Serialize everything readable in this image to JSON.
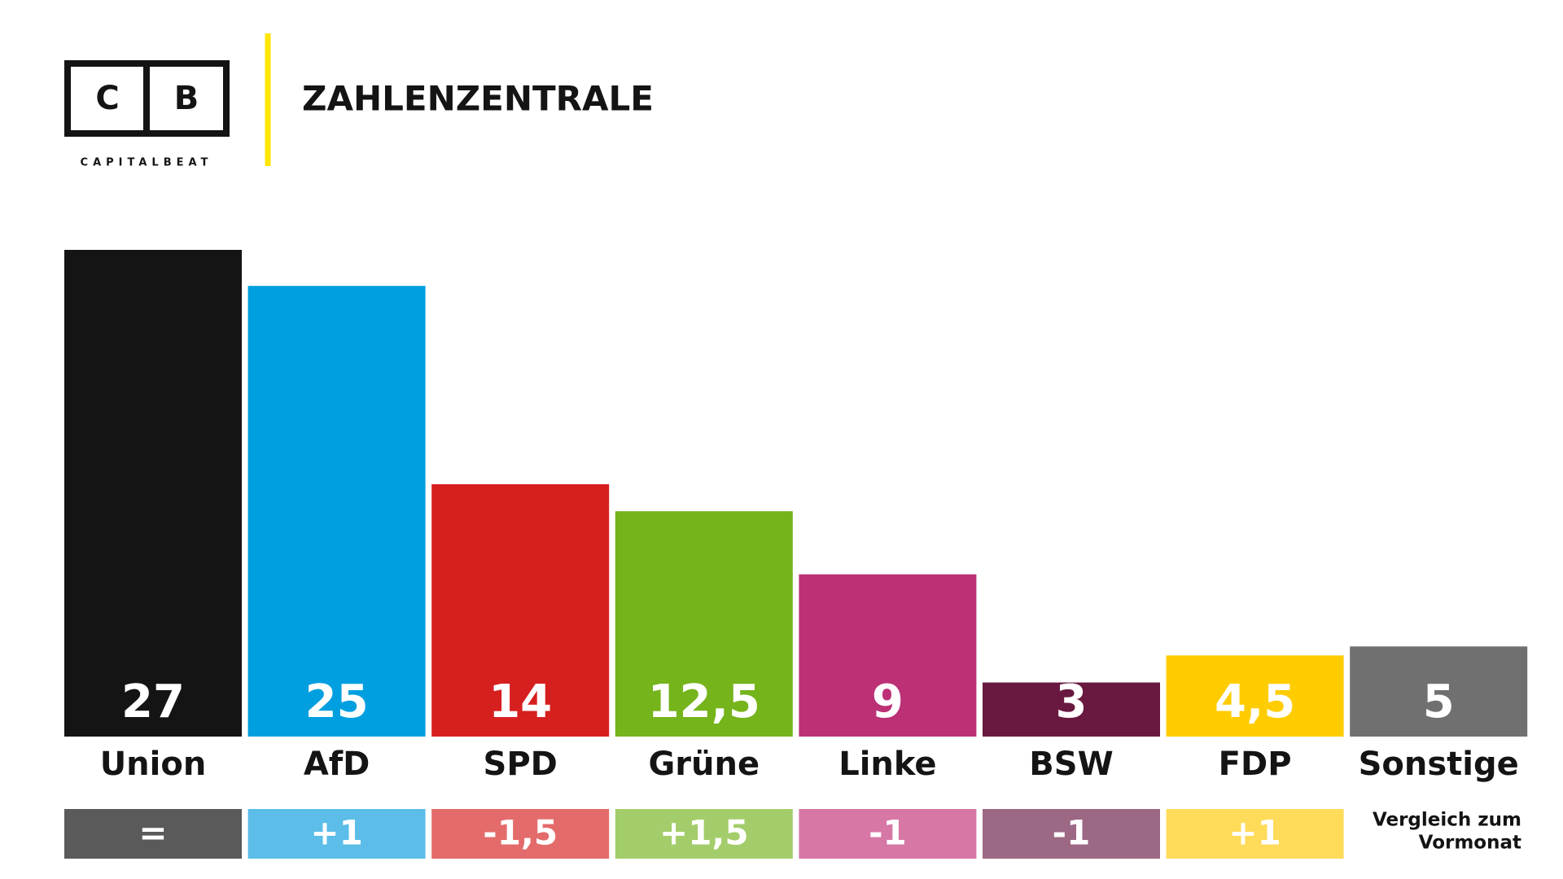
{
  "header": {
    "logo_left": "C",
    "logo_right": "B",
    "brand": "CAPITALBEAT",
    "title": "ZAHLENZENTRALE"
  },
  "chart_data": {
    "type": "bar",
    "categories": [
      "Union",
      "AfD",
      "SPD",
      "Grüne",
      "Linke",
      "BSW",
      "FDP",
      "Sonstige"
    ],
    "values": [
      27,
      25,
      14,
      12.5,
      9,
      3,
      4.5,
      5
    ],
    "value_labels": [
      "27",
      "25",
      "14",
      "12,5",
      "9",
      "3",
      "4,5",
      "5"
    ],
    "colors": [
      "#141414",
      "#009fe0",
      "#d6201f",
      "#75b41b",
      "#bc3176",
      "#69193f",
      "#ffcc00",
      "#707070"
    ],
    "ylim": [
      0,
      27
    ],
    "changes": [
      0,
      1,
      -1.5,
      1.5,
      -1,
      -1,
      1
    ],
    "change_labels": [
      "=",
      "+1",
      "-1,5",
      "+1,5",
      "-1",
      "-1",
      "+1"
    ],
    "change_colors": [
      "#5a5a5a",
      "#5bbde8",
      "#e46b6b",
      "#a3cd6a",
      "#d777a6",
      "#9c6883",
      "#ffdb5a"
    ],
    "change_note": [
      "Vergleich zum",
      "Vormonat"
    ]
  }
}
